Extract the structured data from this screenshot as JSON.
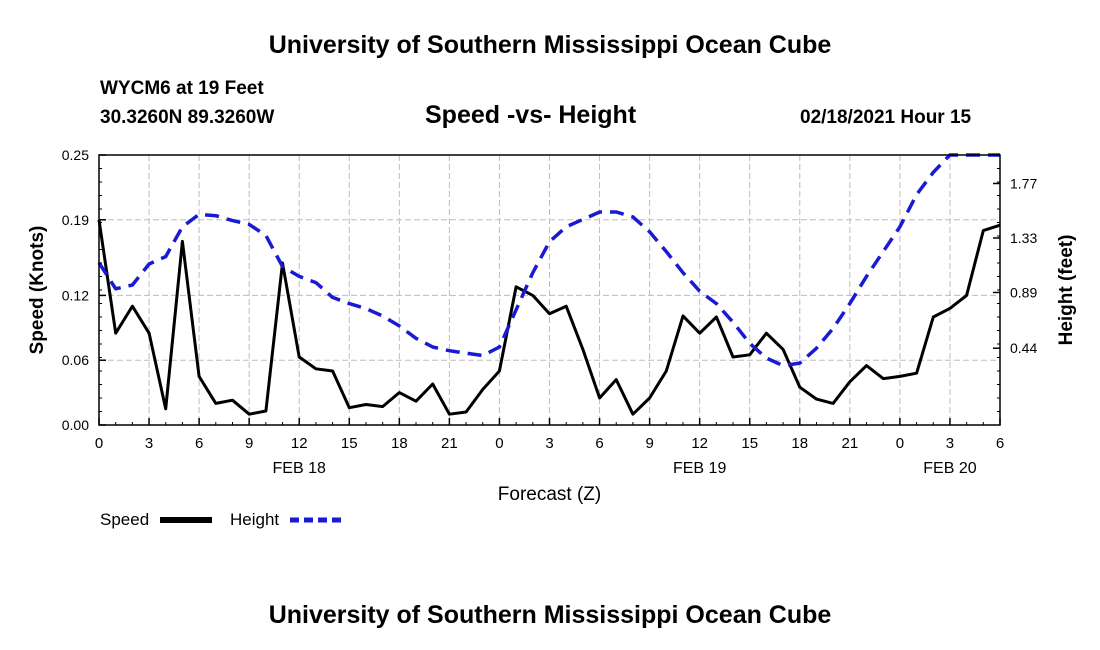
{
  "header": {
    "title": "University of Southern Mississippi Ocean Cube",
    "station": "WYCM6 at 19 Feet",
    "coords": "30.3260N 89.3260W",
    "plot_title": "Speed -vs- Height",
    "date": "02/18/2021 Hour 15"
  },
  "footer": {
    "title": "University of Southern Mississippi Ocean Cube"
  },
  "chart_data": {
    "type": "line",
    "title": "Speed -vs- Height",
    "xlabel": "Forecast (Z)",
    "ylabel": "Speed (Knots)",
    "y2label": "Height (feet)",
    "x_hours": [
      0,
      54
    ],
    "ylim": [
      0,
      0.25
    ],
    "y2lim": [
      -0.18,
      2.0
    ],
    "y_ticks": [
      0.0,
      0.06,
      0.12,
      0.19,
      0.25
    ],
    "y_tick_labels": [
      "0.00",
      "0.06",
      "0.12",
      "0.19",
      "0.25"
    ],
    "y2_ticks": [
      0.44,
      0.89,
      1.33,
      1.77
    ],
    "y2_tick_labels": [
      "0.44",
      "0.89",
      "1.33",
      "1.77"
    ],
    "x_tick_labels": [
      "0",
      "3",
      "6",
      "9",
      "12",
      "15",
      "18",
      "21",
      "0",
      "3",
      "6",
      "9",
      "12",
      "15",
      "18",
      "21",
      "0",
      "3",
      "6"
    ],
    "day_labels": [
      {
        "hour": 12,
        "label": "FEB 18"
      },
      {
        "hour": 36,
        "label": "FEB 19"
      },
      {
        "hour": 51,
        "label": "FEB 20"
      }
    ],
    "grid": true,
    "legend": "bottom-left",
    "series": [
      {
        "name": "Speed",
        "color": "#000000",
        "dashed": false,
        "x": [
          0,
          1,
          2,
          3,
          4,
          5,
          6,
          7,
          8,
          9,
          10,
          11,
          12,
          13,
          14,
          15,
          16,
          17,
          18,
          19,
          20,
          21,
          22,
          23,
          24,
          25,
          26,
          27,
          28,
          29,
          30,
          31,
          32,
          33,
          34,
          35,
          36,
          37,
          38,
          39,
          40,
          41,
          42,
          43,
          44,
          45,
          46,
          47,
          48,
          49,
          50,
          51,
          52,
          53,
          54
        ],
        "values": [
          0.19,
          0.085,
          0.11,
          0.085,
          0.015,
          0.17,
          0.045,
          0.02,
          0.023,
          0.01,
          0.013,
          0.15,
          0.063,
          0.052,
          0.05,
          0.016,
          0.019,
          0.017,
          0.03,
          0.022,
          0.038,
          0.01,
          0.012,
          0.033,
          0.05,
          0.128,
          0.12,
          0.103,
          0.11,
          0.07,
          0.025,
          0.042,
          0.01,
          0.025,
          0.05,
          0.101,
          0.085,
          0.1,
          0.063,
          0.065,
          0.085,
          0.07,
          0.035,
          0.024,
          0.02,
          0.04,
          0.055,
          0.043,
          0.045,
          0.048,
          0.1,
          0.108,
          0.12,
          0.18,
          0.185
        ]
      },
      {
        "name": "Height",
        "color": "#1a1ad4",
        "dashed": true,
        "x": [
          0,
          1,
          2,
          3,
          4,
          5,
          6,
          7,
          8,
          9,
          10,
          11,
          12,
          13,
          14,
          15,
          16,
          17,
          18,
          19,
          20,
          21,
          22,
          23,
          24,
          25,
          26,
          27,
          28,
          29,
          30,
          31,
          32,
          33,
          34,
          35,
          36,
          37,
          38,
          39,
          40,
          41,
          42,
          43,
          44,
          45,
          46,
          47,
          48,
          49,
          50,
          51,
          52,
          53,
          54
        ],
        "values": [
          1.13,
          0.92,
          0.95,
          1.12,
          1.18,
          1.42,
          1.52,
          1.51,
          1.47,
          1.44,
          1.35,
          1.1,
          1.02,
          0.97,
          0.85,
          0.8,
          0.76,
          0.7,
          0.62,
          0.52,
          0.45,
          0.42,
          0.4,
          0.38,
          0.45,
          0.75,
          1.05,
          1.3,
          1.42,
          1.48,
          1.54,
          1.54,
          1.5,
          1.38,
          1.22,
          1.05,
          0.9,
          0.8,
          0.65,
          0.48,
          0.36,
          0.3,
          0.32,
          0.44,
          0.6,
          0.8,
          1.02,
          1.22,
          1.42,
          1.68,
          1.86,
          2.0,
          2.0,
          2.0,
          2.0
        ]
      }
    ]
  },
  "legend": {
    "speed_label": "Speed",
    "height_label": "Height"
  }
}
